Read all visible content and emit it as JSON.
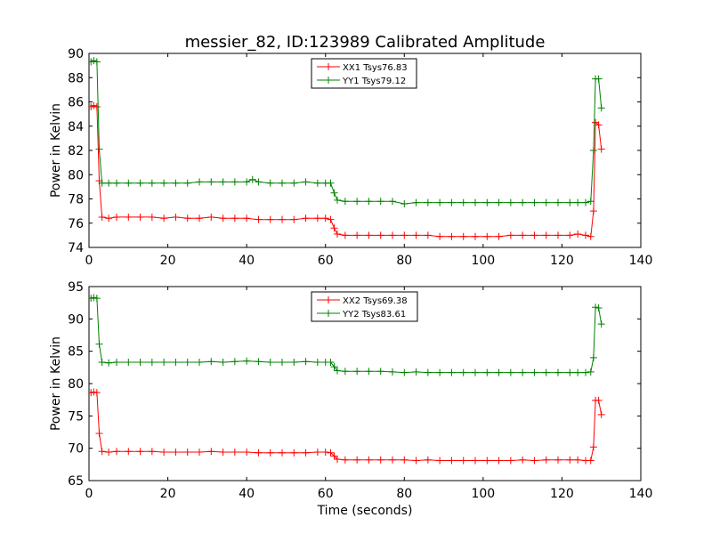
{
  "title": "messier_82, ID:123989 Calibrated Amplitude",
  "colors": {
    "red": "#ff0000",
    "green": "#008000"
  },
  "chart_data": [
    {
      "type": "line",
      "title": "messier_82, ID:123989 Calibrated Amplitude",
      "xlabel": "",
      "ylabel": "Power in Kelvin",
      "xlim": [
        0,
        140
      ],
      "ylim": [
        74,
        90
      ],
      "xticks": [
        0,
        20,
        40,
        60,
        80,
        100,
        120,
        140
      ],
      "yticks": [
        74,
        76,
        78,
        80,
        82,
        84,
        86,
        88,
        90
      ],
      "grid": false,
      "legend_position": "top-center",
      "marker": "+",
      "series": [
        {
          "name": "XX1 Tsys76.83",
          "color": "#ff0000",
          "points": [
            [
              0.5,
              85.6
            ],
            [
              1.2,
              85.7
            ],
            [
              2.0,
              85.6
            ],
            [
              2.6,
              79.5
            ],
            [
              3.3,
              76.5
            ],
            [
              5,
              76.4
            ],
            [
              7,
              76.5
            ],
            [
              10,
              76.5
            ],
            [
              13,
              76.5
            ],
            [
              16,
              76.5
            ],
            [
              19,
              76.4
            ],
            [
              22,
              76.5
            ],
            [
              25,
              76.4
            ],
            [
              28,
              76.4
            ],
            [
              31,
              76.5
            ],
            [
              34,
              76.4
            ],
            [
              37,
              76.4
            ],
            [
              40,
              76.4
            ],
            [
              43,
              76.3
            ],
            [
              46,
              76.3
            ],
            [
              49,
              76.3
            ],
            [
              52,
              76.3
            ],
            [
              55,
              76.4
            ],
            [
              58,
              76.4
            ],
            [
              60,
              76.4
            ],
            [
              61.3,
              76.3
            ],
            [
              62.2,
              75.6
            ],
            [
              63,
              75.1
            ],
            [
              65,
              75.0
            ],
            [
              68,
              75.0
            ],
            [
              71,
              75.0
            ],
            [
              74,
              75.0
            ],
            [
              77,
              75.0
            ],
            [
              80,
              75.0
            ],
            [
              83,
              75.0
            ],
            [
              86,
              75.0
            ],
            [
              89,
              74.9
            ],
            [
              92,
              74.9
            ],
            [
              95,
              74.9
            ],
            [
              98,
              74.9
            ],
            [
              101,
              74.9
            ],
            [
              104,
              74.9
            ],
            [
              107,
              75.0
            ],
            [
              110,
              75.0
            ],
            [
              113,
              75.0
            ],
            [
              116,
              75.0
            ],
            [
              119,
              75.0
            ],
            [
              122,
              75.0
            ],
            [
              124,
              75.1
            ],
            [
              126,
              75.0
            ],
            [
              127.3,
              74.9
            ],
            [
              128,
              77.0
            ],
            [
              128.5,
              84.3
            ],
            [
              129.3,
              84.1
            ],
            [
              130,
              82.1
            ]
          ]
        },
        {
          "name": "YY1 Tsys79.12",
          "color": "#008000",
          "points": [
            [
              0.5,
              89.3
            ],
            [
              1.2,
              89.4
            ],
            [
              2.0,
              89.3
            ],
            [
              2.6,
              82.1
            ],
            [
              3.3,
              79.3
            ],
            [
              5,
              79.3
            ],
            [
              7,
              79.3
            ],
            [
              10,
              79.3
            ],
            [
              13,
              79.3
            ],
            [
              16,
              79.3
            ],
            [
              19,
              79.3
            ],
            [
              22,
              79.3
            ],
            [
              25,
              79.3
            ],
            [
              28,
              79.4
            ],
            [
              31,
              79.4
            ],
            [
              34,
              79.4
            ],
            [
              37,
              79.4
            ],
            [
              40,
              79.4
            ],
            [
              41.5,
              79.6
            ],
            [
              43,
              79.4
            ],
            [
              46,
              79.3
            ],
            [
              49,
              79.3
            ],
            [
              52,
              79.3
            ],
            [
              55,
              79.4
            ],
            [
              58,
              79.3
            ],
            [
              60,
              79.3
            ],
            [
              61.3,
              79.3
            ],
            [
              62.2,
              78.5
            ],
            [
              63,
              77.9
            ],
            [
              65,
              77.8
            ],
            [
              68,
              77.8
            ],
            [
              71,
              77.8
            ],
            [
              74,
              77.8
            ],
            [
              77,
              77.8
            ],
            [
              80,
              77.6
            ],
            [
              83,
              77.7
            ],
            [
              86,
              77.7
            ],
            [
              89,
              77.7
            ],
            [
              92,
              77.7
            ],
            [
              95,
              77.7
            ],
            [
              98,
              77.7
            ],
            [
              101,
              77.7
            ],
            [
              104,
              77.7
            ],
            [
              107,
              77.7
            ],
            [
              110,
              77.7
            ],
            [
              113,
              77.7
            ],
            [
              116,
              77.7
            ],
            [
              119,
              77.7
            ],
            [
              122,
              77.7
            ],
            [
              124,
              77.7
            ],
            [
              126,
              77.7
            ],
            [
              127.3,
              77.8
            ],
            [
              128,
              82.0
            ],
            [
              128.5,
              87.9
            ],
            [
              129.3,
              87.9
            ],
            [
              130,
              85.5
            ]
          ]
        }
      ]
    },
    {
      "type": "line",
      "title": "",
      "xlabel": "Time (seconds)",
      "ylabel": "Power in Kelvin",
      "xlim": [
        0,
        140
      ],
      "ylim": [
        65,
        95
      ],
      "xticks": [
        0,
        20,
        40,
        60,
        80,
        100,
        120,
        140
      ],
      "yticks": [
        65,
        70,
        75,
        80,
        85,
        90,
        95
      ],
      "grid": false,
      "legend_position": "top-center",
      "marker": "+",
      "series": [
        {
          "name": "XX2 Tsys69.38",
          "color": "#ff0000",
          "points": [
            [
              0.5,
              78.6
            ],
            [
              1.2,
              78.7
            ],
            [
              2.0,
              78.6
            ],
            [
              2.6,
              72.3
            ],
            [
              3.3,
              69.5
            ],
            [
              5,
              69.4
            ],
            [
              7,
              69.5
            ],
            [
              10,
              69.5
            ],
            [
              13,
              69.5
            ],
            [
              16,
              69.5
            ],
            [
              19,
              69.4
            ],
            [
              22,
              69.4
            ],
            [
              25,
              69.4
            ],
            [
              28,
              69.4
            ],
            [
              31,
              69.5
            ],
            [
              34,
              69.4
            ],
            [
              37,
              69.4
            ],
            [
              40,
              69.4
            ],
            [
              43,
              69.3
            ],
            [
              46,
              69.3
            ],
            [
              49,
              69.3
            ],
            [
              52,
              69.3
            ],
            [
              55,
              69.3
            ],
            [
              58,
              69.4
            ],
            [
              60,
              69.4
            ],
            [
              61.3,
              69.3
            ],
            [
              62.2,
              68.8
            ],
            [
              63,
              68.3
            ],
            [
              65,
              68.2
            ],
            [
              68,
              68.2
            ],
            [
              71,
              68.2
            ],
            [
              74,
              68.2
            ],
            [
              77,
              68.2
            ],
            [
              80,
              68.2
            ],
            [
              83,
              68.1
            ],
            [
              86,
              68.2
            ],
            [
              89,
              68.1
            ],
            [
              92,
              68.1
            ],
            [
              95,
              68.1
            ],
            [
              98,
              68.1
            ],
            [
              101,
              68.1
            ],
            [
              104,
              68.1
            ],
            [
              107,
              68.1
            ],
            [
              110,
              68.2
            ],
            [
              113,
              68.1
            ],
            [
              116,
              68.2
            ],
            [
              119,
              68.2
            ],
            [
              122,
              68.2
            ],
            [
              124,
              68.2
            ],
            [
              126,
              68.1
            ],
            [
              127.3,
              68.1
            ],
            [
              128,
              70.2
            ],
            [
              128.5,
              77.4
            ],
            [
              129.3,
              77.4
            ],
            [
              130,
              75.2
            ]
          ]
        },
        {
          "name": "YY2 Tsys83.61",
          "color": "#008000",
          "points": [
            [
              0.5,
              93.2
            ],
            [
              1.2,
              93.3
            ],
            [
              2.0,
              93.2
            ],
            [
              2.6,
              86.1
            ],
            [
              3.3,
              83.3
            ],
            [
              5,
              83.2
            ],
            [
              7,
              83.3
            ],
            [
              10,
              83.3
            ],
            [
              13,
              83.3
            ],
            [
              16,
              83.3
            ],
            [
              19,
              83.3
            ],
            [
              22,
              83.3
            ],
            [
              25,
              83.3
            ],
            [
              28,
              83.3
            ],
            [
              31,
              83.4
            ],
            [
              34,
              83.3
            ],
            [
              37,
              83.4
            ],
            [
              40,
              83.5
            ],
            [
              43,
              83.4
            ],
            [
              46,
              83.3
            ],
            [
              49,
              83.3
            ],
            [
              52,
              83.3
            ],
            [
              55,
              83.4
            ],
            [
              58,
              83.3
            ],
            [
              60,
              83.3
            ],
            [
              61.3,
              83.3
            ],
            [
              62.2,
              82.6
            ],
            [
              63,
              82.0
            ],
            [
              65,
              81.9
            ],
            [
              68,
              81.9
            ],
            [
              71,
              81.9
            ],
            [
              74,
              81.9
            ],
            [
              77,
              81.8
            ],
            [
              80,
              81.7
            ],
            [
              83,
              81.8
            ],
            [
              86,
              81.7
            ],
            [
              89,
              81.7
            ],
            [
              92,
              81.7
            ],
            [
              95,
              81.7
            ],
            [
              98,
              81.7
            ],
            [
              101,
              81.7
            ],
            [
              104,
              81.7
            ],
            [
              107,
              81.7
            ],
            [
              110,
              81.7
            ],
            [
              113,
              81.7
            ],
            [
              116,
              81.7
            ],
            [
              119,
              81.7
            ],
            [
              122,
              81.7
            ],
            [
              124,
              81.7
            ],
            [
              126,
              81.7
            ],
            [
              127.3,
              81.8
            ],
            [
              128,
              84.0
            ],
            [
              128.5,
              91.8
            ],
            [
              129.3,
              91.7
            ],
            [
              130,
              89.2
            ]
          ]
        }
      ]
    }
  ]
}
